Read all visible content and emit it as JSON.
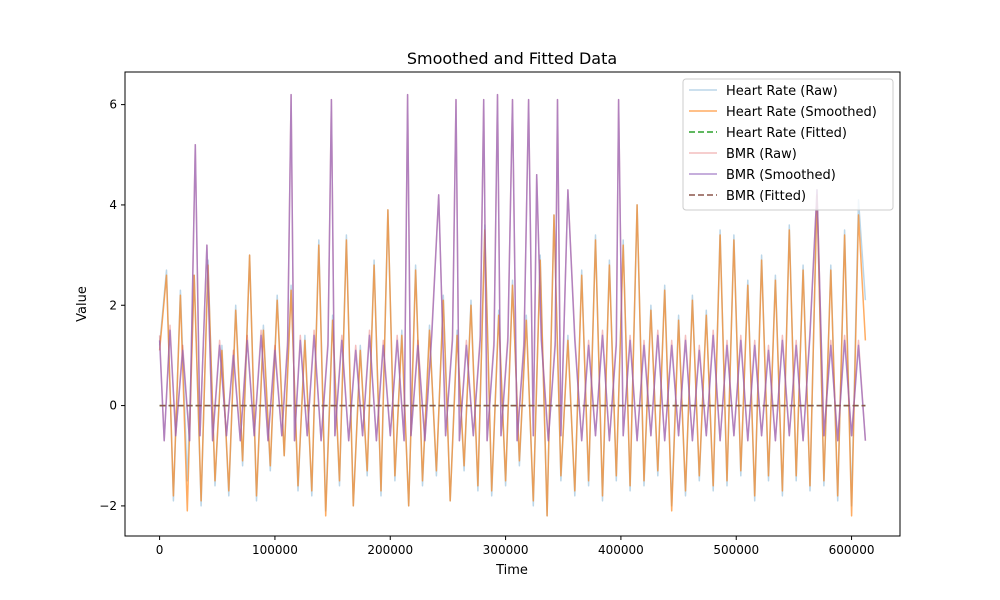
{
  "chart_data": {
    "type": "line",
    "title": "Smoothed and Fitted Data",
    "xlabel": "Time",
    "ylabel": "Value",
    "xlim": [
      -30000,
      642000
    ],
    "ylim": [
      -2.6,
      6.65
    ],
    "x_ticks": [
      0,
      100000,
      200000,
      300000,
      400000,
      500000,
      600000
    ],
    "x_tick_labels": [
      "0",
      "100000",
      "200000",
      "300000",
      "400000",
      "500000",
      "600000"
    ],
    "y_ticks": [
      -2,
      0,
      2,
      4,
      6
    ],
    "y_tick_labels": [
      "−2",
      "0",
      "2",
      "4",
      "6"
    ],
    "grid": false,
    "legend": "top-right",
    "x_range": [
      0,
      612000
    ],
    "series": [
      {
        "name": "Heart Rate (Raw)",
        "color": "#1f77b4",
        "alpha": 0.3,
        "style": "solid",
        "x": [
          0,
          6000,
          12000,
          18000,
          24000,
          30000,
          36000,
          42000,
          48000,
          54000,
          60000,
          66000,
          72000,
          78000,
          84000,
          90000,
          96000,
          102000,
          108000,
          114000,
          120000,
          126000,
          132000,
          138000,
          144000,
          150000,
          156000,
          162000,
          168000,
          174000,
          180000,
          186000,
          192000,
          198000,
          204000,
          210000,
          216000,
          222000,
          228000,
          234000,
          240000,
          246000,
          252000,
          258000,
          264000,
          270000,
          276000,
          282000,
          288000,
          294000,
          300000,
          306000,
          312000,
          318000,
          324000,
          330000,
          336000,
          342000,
          348000,
          354000,
          360000,
          366000,
          372000,
          378000,
          384000,
          390000,
          396000,
          402000,
          408000,
          414000,
          420000,
          426000,
          432000,
          438000,
          444000,
          450000,
          456000,
          462000,
          468000,
          474000,
          480000,
          486000,
          492000,
          498000,
          504000,
          510000,
          516000,
          522000,
          528000,
          534000,
          540000,
          546000,
          552000,
          558000,
          564000,
          570000,
          576000,
          582000,
          588000,
          594000,
          600000,
          606000,
          612000
        ],
        "values": [
          1.2,
          2.7,
          -1.9,
          2.3,
          -1.5,
          2.6,
          -2.0,
          2.9,
          -1.6,
          1.2,
          -1.8,
          2.0,
          -1.2,
          3.0,
          -1.9,
          1.6,
          -1.3,
          2.2,
          -1.0,
          2.4,
          -1.7,
          1.4,
          -1.8,
          3.3,
          -2.1,
          1.8,
          -1.6,
          3.4,
          -2.0,
          1.2,
          -1.4,
          2.9,
          -1.8,
          3.9,
          -1.5,
          1.5,
          -2.0,
          2.8,
          -1.6,
          1.6,
          -1.4,
          2.2,
          -1.9,
          1.5,
          -1.3,
          2.1,
          -1.7,
          3.6,
          -1.8,
          1.9,
          -1.6,
          2.5,
          -1.2,
          1.8,
          -2.0,
          3.0,
          -2.2,
          3.8,
          -1.5,
          1.4,
          -1.8,
          2.7,
          -1.6,
          3.4,
          -1.9,
          2.9,
          -1.5,
          3.3,
          -1.7,
          4.0,
          -1.6,
          2.0,
          -1.4,
          2.4,
          -2.0,
          1.8,
          -1.8,
          2.2,
          -1.5,
          1.9,
          -1.7,
          3.5,
          -1.6,
          3.4,
          -1.4,
          2.5,
          -1.9,
          3.0,
          -1.5,
          2.6,
          -1.8,
          3.6,
          -1.5,
          2.8,
          -1.7,
          4.3,
          -1.6,
          2.8,
          -1.9,
          3.5,
          -2.0,
          4.1,
          2.1
        ]
      },
      {
        "name": "Heart Rate (Smoothed)",
        "color": "#ff7f0e",
        "alpha": 0.65,
        "style": "solid",
        "x": [
          0,
          6000,
          12000,
          18000,
          24000,
          30000,
          36000,
          42000,
          48000,
          54000,
          60000,
          66000,
          72000,
          78000,
          84000,
          90000,
          96000,
          102000,
          108000,
          114000,
          120000,
          126000,
          132000,
          138000,
          144000,
          150000,
          156000,
          162000,
          168000,
          174000,
          180000,
          186000,
          192000,
          198000,
          204000,
          210000,
          216000,
          222000,
          228000,
          234000,
          240000,
          246000,
          252000,
          258000,
          264000,
          270000,
          276000,
          282000,
          288000,
          294000,
          300000,
          306000,
          312000,
          318000,
          324000,
          330000,
          336000,
          342000,
          348000,
          354000,
          360000,
          366000,
          372000,
          378000,
          384000,
          390000,
          396000,
          402000,
          408000,
          414000,
          420000,
          426000,
          432000,
          438000,
          444000,
          450000,
          456000,
          462000,
          468000,
          474000,
          480000,
          486000,
          492000,
          498000,
          504000,
          510000,
          516000,
          522000,
          528000,
          534000,
          540000,
          546000,
          552000,
          558000,
          564000,
          570000,
          576000,
          582000,
          588000,
          594000,
          600000,
          606000,
          612000
        ],
        "values": [
          1.1,
          2.6,
          -1.8,
          2.2,
          -2.1,
          2.6,
          -1.9,
          2.8,
          -1.5,
          1.1,
          -1.7,
          1.9,
          -1.1,
          3.0,
          -1.8,
          1.5,
          -1.2,
          2.1,
          -1.0,
          2.3,
          -1.6,
          1.3,
          -1.7,
          3.2,
          -2.2,
          1.7,
          -1.5,
          3.3,
          -2.0,
          1.1,
          -1.3,
          2.8,
          -1.7,
          3.9,
          -1.4,
          1.4,
          -2.0,
          2.7,
          -1.5,
          1.5,
          -1.3,
          2.1,
          -1.9,
          1.4,
          -1.2,
          2.0,
          -1.6,
          3.5,
          -1.7,
          1.8,
          -1.5,
          2.4,
          -1.1,
          1.7,
          -1.9,
          2.9,
          -2.2,
          3.8,
          -1.4,
          1.3,
          -1.7,
          2.6,
          -1.5,
          3.3,
          -1.8,
          2.8,
          -1.4,
          3.2,
          -1.6,
          4.0,
          -1.5,
          1.9,
          -1.3,
          2.3,
          -2.1,
          1.7,
          -1.7,
          2.1,
          -1.4,
          1.8,
          -1.6,
          3.4,
          -1.5,
          3.3,
          -1.3,
          2.4,
          -1.8,
          2.9,
          -1.4,
          2.5,
          -1.7,
          3.5,
          -1.4,
          2.7,
          -1.6,
          4.2,
          -1.5,
          2.7,
          -1.8,
          3.4,
          -2.2,
          3.8,
          1.3
        ]
      },
      {
        "name": "Heart Rate (Fitted)",
        "color": "#2ca02c",
        "alpha": 1,
        "style": "dashed",
        "x": [
          0,
          612000
        ],
        "values": [
          0.0,
          0.0
        ]
      },
      {
        "name": "BMR (Raw)",
        "color": "#d62728",
        "alpha": 0.3,
        "style": "solid",
        "x": [
          0,
          4000,
          9000,
          14000,
          20000,
          26000,
          31000,
          35000,
          41000,
          46000,
          52000,
          58000,
          64000,
          70000,
          76000,
          82000,
          88000,
          94000,
          100000,
          106000,
          111000,
          114000,
          117000,
          122000,
          128000,
          134000,
          140000,
          146000,
          149000,
          152000,
          158000,
          164000,
          170000,
          176000,
          182000,
          188000,
          194000,
          200000,
          206000,
          212000,
          215000,
          218000,
          224000,
          230000,
          236000,
          242000,
          248000,
          254000,
          257000,
          260000,
          266000,
          272000,
          278000,
          281000,
          284000,
          290000,
          293000,
          296000,
          302000,
          306000,
          310000,
          316000,
          320000,
          324000,
          327000,
          331000,
          337000,
          343000,
          345000,
          348000,
          354000,
          360000,
          366000,
          372000,
          378000,
          384000,
          390000,
          396000,
          398000,
          402000,
          408000,
          414000,
          420000,
          426000,
          432000,
          438000,
          444000,
          450000,
          456000,
          462000,
          468000,
          474000,
          480000,
          486000,
          492000,
          498000,
          504000,
          510000,
          516000,
          522000,
          528000,
          534000,
          540000,
          546000,
          552000,
          558000,
          564000,
          570000,
          576000,
          582000,
          588000,
          594000,
          600000,
          606000,
          612000
        ],
        "values": [
          1.4,
          -0.7,
          1.6,
          -0.6,
          1.2,
          -0.7,
          5.2,
          -0.6,
          3.2,
          -0.7,
          1.3,
          -0.6,
          1.1,
          -0.7,
          1.4,
          -0.6,
          1.5,
          -0.7,
          1.2,
          -0.6,
          1.3,
          6.2,
          -0.7,
          1.4,
          -0.6,
          1.5,
          -0.7,
          1.3,
          6.1,
          -0.6,
          1.4,
          -0.7,
          1.2,
          -0.6,
          1.5,
          -0.7,
          1.3,
          -0.6,
          1.4,
          -0.7,
          6.2,
          -0.6,
          1.3,
          -0.7,
          1.5,
          4.2,
          -0.6,
          1.4,
          6.1,
          -0.7,
          1.3,
          -0.6,
          1.4,
          6.1,
          -0.7,
          1.3,
          6.2,
          -0.6,
          1.4,
          6.1,
          -0.7,
          1.3,
          6.1,
          -0.6,
          4.6,
          1.4,
          -0.7,
          1.3,
          6.1,
          -0.6,
          4.3,
          1.4,
          -0.7,
          1.3,
          -0.6,
          1.5,
          -0.7,
          1.3,
          6.1,
          -0.6,
          1.4,
          -0.7,
          1.3,
          -0.6,
          1.5,
          -0.7,
          1.3,
          -0.6,
          1.4,
          -0.7,
          1.2,
          -0.6,
          1.5,
          -0.7,
          1.3,
          -0.6,
          1.4,
          -0.7,
          1.3,
          -0.6,
          1.2,
          -0.7,
          1.4,
          -0.6,
          1.3,
          -0.7,
          1.5,
          4.3,
          -0.6,
          1.3,
          -0.7,
          1.4,
          -0.6,
          1.3,
          -0.7
        ]
      },
      {
        "name": "BMR (Smoothed)",
        "color": "#9467bd",
        "alpha": 0.7,
        "style": "solid",
        "x": [
          0,
          4000,
          9000,
          14000,
          20000,
          26000,
          31000,
          35000,
          41000,
          46000,
          52000,
          58000,
          64000,
          70000,
          76000,
          82000,
          88000,
          94000,
          100000,
          106000,
          111000,
          114000,
          117000,
          122000,
          128000,
          134000,
          140000,
          146000,
          149000,
          152000,
          158000,
          164000,
          170000,
          176000,
          182000,
          188000,
          194000,
          200000,
          206000,
          212000,
          215000,
          218000,
          224000,
          230000,
          236000,
          242000,
          248000,
          254000,
          257000,
          260000,
          266000,
          272000,
          278000,
          281000,
          284000,
          290000,
          293000,
          296000,
          302000,
          306000,
          310000,
          316000,
          320000,
          324000,
          327000,
          331000,
          337000,
          343000,
          345000,
          348000,
          354000,
          360000,
          366000,
          372000,
          378000,
          384000,
          390000,
          396000,
          398000,
          402000,
          408000,
          414000,
          420000,
          426000,
          432000,
          438000,
          444000,
          450000,
          456000,
          462000,
          468000,
          474000,
          480000,
          486000,
          492000,
          498000,
          504000,
          510000,
          516000,
          522000,
          528000,
          534000,
          540000,
          546000,
          552000,
          558000,
          564000,
          570000,
          576000,
          582000,
          588000,
          594000,
          600000,
          606000,
          612000
        ],
        "values": [
          1.3,
          -0.7,
          1.5,
          -0.6,
          1.1,
          -0.7,
          5.2,
          -0.6,
          3.2,
          -0.7,
          1.2,
          -0.6,
          1.0,
          -0.7,
          1.3,
          -0.6,
          1.4,
          -0.7,
          1.1,
          -0.6,
          1.2,
          6.2,
          -0.7,
          1.3,
          -0.6,
          1.4,
          -0.7,
          1.2,
          6.1,
          -0.6,
          1.3,
          -0.7,
          1.1,
          -0.6,
          1.4,
          -0.7,
          1.2,
          -0.6,
          1.3,
          -0.7,
          6.2,
          -0.6,
          1.2,
          -0.7,
          1.4,
          4.2,
          -0.6,
          1.3,
          6.1,
          -0.7,
          1.2,
          -0.6,
          1.3,
          6.1,
          -0.7,
          1.2,
          6.2,
          -0.6,
          1.3,
          6.1,
          -0.7,
          1.2,
          6.1,
          -0.6,
          4.6,
          1.3,
          -0.7,
          1.2,
          6.1,
          -0.6,
          4.3,
          1.3,
          -0.7,
          1.2,
          -0.6,
          1.4,
          -0.7,
          1.2,
          6.1,
          -0.6,
          1.3,
          -0.7,
          1.2,
          -0.6,
          1.4,
          -0.7,
          1.2,
          -0.6,
          1.3,
          -0.7,
          1.1,
          -0.6,
          1.4,
          -0.7,
          1.2,
          -0.6,
          1.3,
          -0.7,
          1.2,
          -0.6,
          1.1,
          -0.7,
          1.3,
          -0.6,
          1.2,
          -0.7,
          1.4,
          4.3,
          -0.6,
          1.2,
          -0.7,
          1.3,
          -0.6,
          1.2,
          -0.7
        ]
      },
      {
        "name": "BMR (Fitted)",
        "color": "#8c564b",
        "alpha": 1,
        "style": "dashed",
        "x": [
          0,
          612000
        ],
        "values": [
          0.0,
          0.0
        ]
      }
    ]
  }
}
